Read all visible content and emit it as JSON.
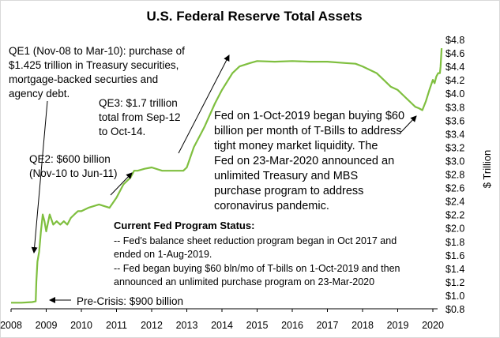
{
  "chart_data": {
    "type": "line",
    "title": "U.S. Federal Reserve Total Assets",
    "ylabel": "$ Trillion",
    "xlim": [
      2008,
      2020.25
    ],
    "ylim": [
      0.8,
      4.8
    ],
    "x_ticks": [
      "2008",
      "2009",
      "2010",
      "2011",
      "2012",
      "2013",
      "2014",
      "2015",
      "2016",
      "2017",
      "2018",
      "2019",
      "2020"
    ],
    "y_ticks": [
      "$4.8",
      "$4.6",
      "$4.4",
      "$4.2",
      "$4.0",
      "$3.8",
      "$3.6",
      "$3.4",
      "$3.2",
      "$3.0",
      "$2.8",
      "$2.6",
      "$2.4",
      "$2.2",
      "$2.0",
      "$1.8",
      "$1.6",
      "$1.4",
      "$1.2",
      "$1.0",
      "$0.8"
    ],
    "series_color": "#7fbf3f",
    "series": [
      {
        "x": [
          2008.0,
          2008.3,
          2008.6,
          2008.7,
          2008.72,
          2008.75,
          2008.8,
          2008.85,
          2008.9,
          2008.95,
          2009.0,
          2009.1,
          2009.2,
          2009.3,
          2009.4,
          2009.5,
          2009.6,
          2009.7,
          2009.8,
          2009.9,
          2010.0,
          2010.2,
          2010.5,
          2010.8,
          2011.0,
          2011.2,
          2011.4,
          2011.5,
          2011.6,
          2011.8,
          2012.0,
          2012.3,
          2012.6,
          2012.9,
          2013.0,
          2013.2,
          2013.5,
          2013.8,
          2014.0,
          2014.3,
          2014.5,
          2014.8,
          2015.0,
          2015.5,
          2016.0,
          2016.5,
          2017.0,
          2017.5,
          2017.8,
          2018.0,
          2018.2,
          2018.4,
          2018.6,
          2018.8,
          2019.0,
          2019.2,
          2019.4,
          2019.5,
          2019.6,
          2019.7,
          2019.8,
          2019.9,
          2020.0,
          2020.05,
          2020.1,
          2020.15,
          2020.2,
          2020.22,
          2020.25
        ],
        "y": [
          0.89,
          0.89,
          0.9,
          0.91,
          1.2,
          1.5,
          1.65,
          1.95,
          2.2,
          2.1,
          1.95,
          2.2,
          2.05,
          2.1,
          2.05,
          2.1,
          2.05,
          2.15,
          2.2,
          2.25,
          2.25,
          2.3,
          2.35,
          2.3,
          2.45,
          2.65,
          2.75,
          2.85,
          2.85,
          2.88,
          2.9,
          2.85,
          2.85,
          2.85,
          2.9,
          3.2,
          3.5,
          3.85,
          4.05,
          4.3,
          4.4,
          4.45,
          4.48,
          4.47,
          4.48,
          4.47,
          4.47,
          4.45,
          4.44,
          4.4,
          4.35,
          4.3,
          4.2,
          4.1,
          4.05,
          3.95,
          3.85,
          3.8,
          3.78,
          3.75,
          3.88,
          4.05,
          4.2,
          4.15,
          4.25,
          4.3,
          4.3,
          4.4,
          4.67
        ]
      }
    ]
  },
  "annotations": {
    "qe1": [
      "QE1 (Nov-08 to Mar-10): purchase of",
      "$1.425 trillion in Treasury securities,",
      "mortgage-backed securties and",
      "agency debt."
    ],
    "qe3": [
      "QE3:  $1.7 trillion",
      "total from Sep-12",
      "to Oct-14."
    ],
    "qe2": [
      "QE2: $600 billion",
      "(Nov-10 to Jun-11)"
    ],
    "fed_2019": [
      "Fed on 1-Oct-2019 began buying $60",
      "billion per month  of T-Bills to address",
      "tight money market liquidity.  The",
      "Fed on 23-Mar-2020 announced an",
      "unlimited Treasury and MBS",
      "purchase program  to address",
      "coronavirus pandemic."
    ],
    "status_title": "Current Fed Program Status:",
    "status_lines": [
      "-- Fed's balance sheet reduction program began in Oct 2017  and",
      "ended on 1-Aug-2019.",
      "-- Fed began buying $60 bln/mo of T-bills on 1-Oct-2019 and then",
      "announced an unlimited purchase program on 23-Mar-2020"
    ],
    "pre_crisis": "Pre-Crisis:  $900 billion"
  }
}
